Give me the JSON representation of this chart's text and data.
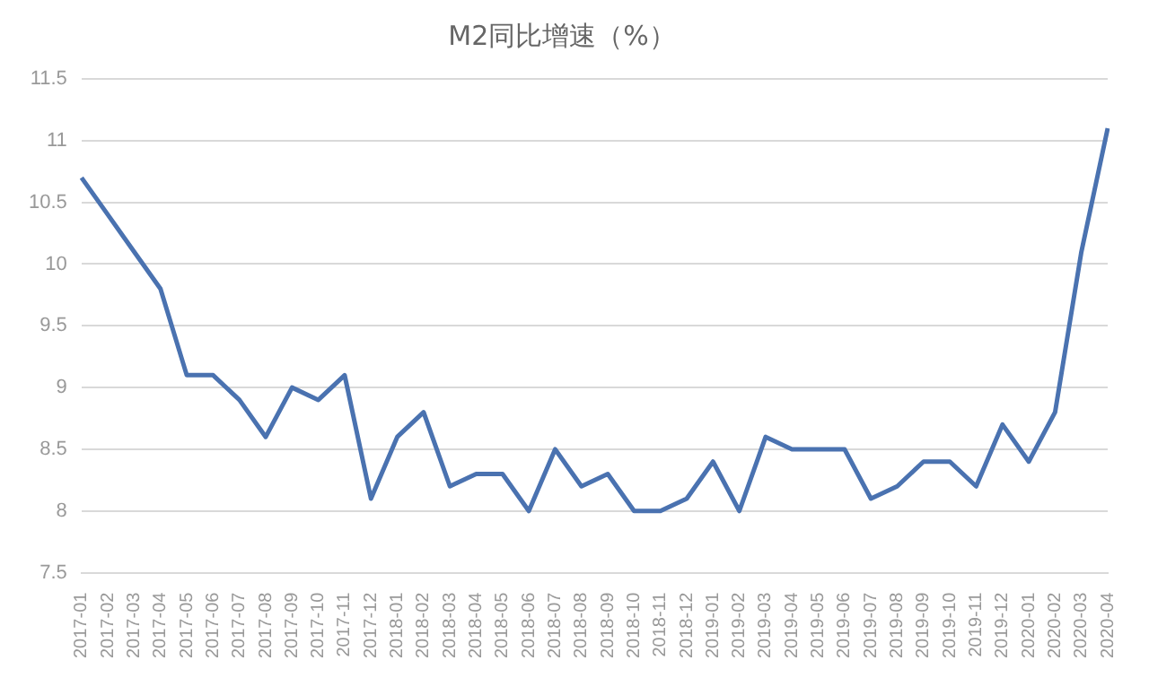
{
  "chart_data": {
    "type": "line",
    "title": "M2同比增速（%）",
    "categories": [
      "2017-01",
      "2017-02",
      "2017-03",
      "2017-04",
      "2017-05",
      "2017-06",
      "2017-07",
      "2017-08",
      "2017-09",
      "2017-10",
      "2017-11",
      "2017-12",
      "2018-01",
      "2018-02",
      "2018-03",
      "2018-04",
      "2018-05",
      "2018-06",
      "2018-07",
      "2018-08",
      "2018-09",
      "2018-10",
      "2018-11",
      "2018-12",
      "2019-01",
      "2019-02",
      "2019-03",
      "2019-04",
      "2019-05",
      "2019-06",
      "2019-07",
      "2019-08",
      "2019-09",
      "2019-10",
      "2019-11",
      "2019-12",
      "2020-01",
      "2020-02",
      "2020-03",
      "2020-04"
    ],
    "series": [
      {
        "color": "#4a72b0",
        "values": [
          10.7,
          10.4,
          10.1,
          9.8,
          9.1,
          9.1,
          8.9,
          8.6,
          9.0,
          8.9,
          9.1,
          8.1,
          8.6,
          8.8,
          8.2,
          8.3,
          8.3,
          8.0,
          8.5,
          8.2,
          8.3,
          8.0,
          8.0,
          8.1,
          8.4,
          8.0,
          8.6,
          8.5,
          8.5,
          8.5,
          8.1,
          8.2,
          8.4,
          8.4,
          8.2,
          8.7,
          8.4,
          8.8,
          10.1,
          11.1
        ]
      }
    ],
    "ylim": [
      7.5,
      11.5
    ],
    "yticks": [
      7.5,
      8,
      8.5,
      9,
      9.5,
      10,
      10.5,
      11,
      11.5
    ],
    "grid": "y",
    "legend": false,
    "marker": "none",
    "line_style": "solid"
  }
}
